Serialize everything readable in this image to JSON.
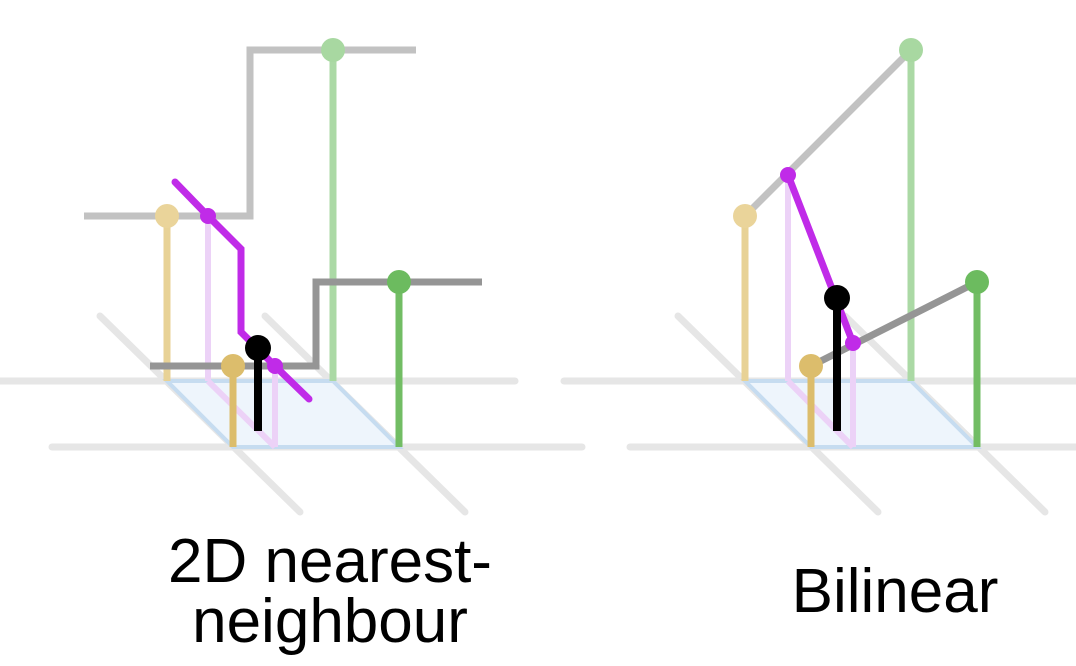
{
  "panels": [
    {
      "id": "nearest",
      "caption_lines": [
        "2D nearest-",
        "neighbour"
      ]
    },
    {
      "id": "bilinear",
      "caption_lines": [
        "Bilinear"
      ]
    }
  ],
  "colors": {
    "grid": "#e5e5e5",
    "cell_fill": "#eef5fc",
    "cell_edge": "#c9ddf0",
    "gold": "#e8cf8d",
    "gold_dark": "#d9b965",
    "green_light": "#a6d9a0",
    "green": "#6cbb5f",
    "gray_light": "#bdbdbd",
    "gray": "#8f8f8f",
    "magenta": "#c02be8",
    "magenta_light": "#ecd4f7",
    "black": "#000000"
  }
}
